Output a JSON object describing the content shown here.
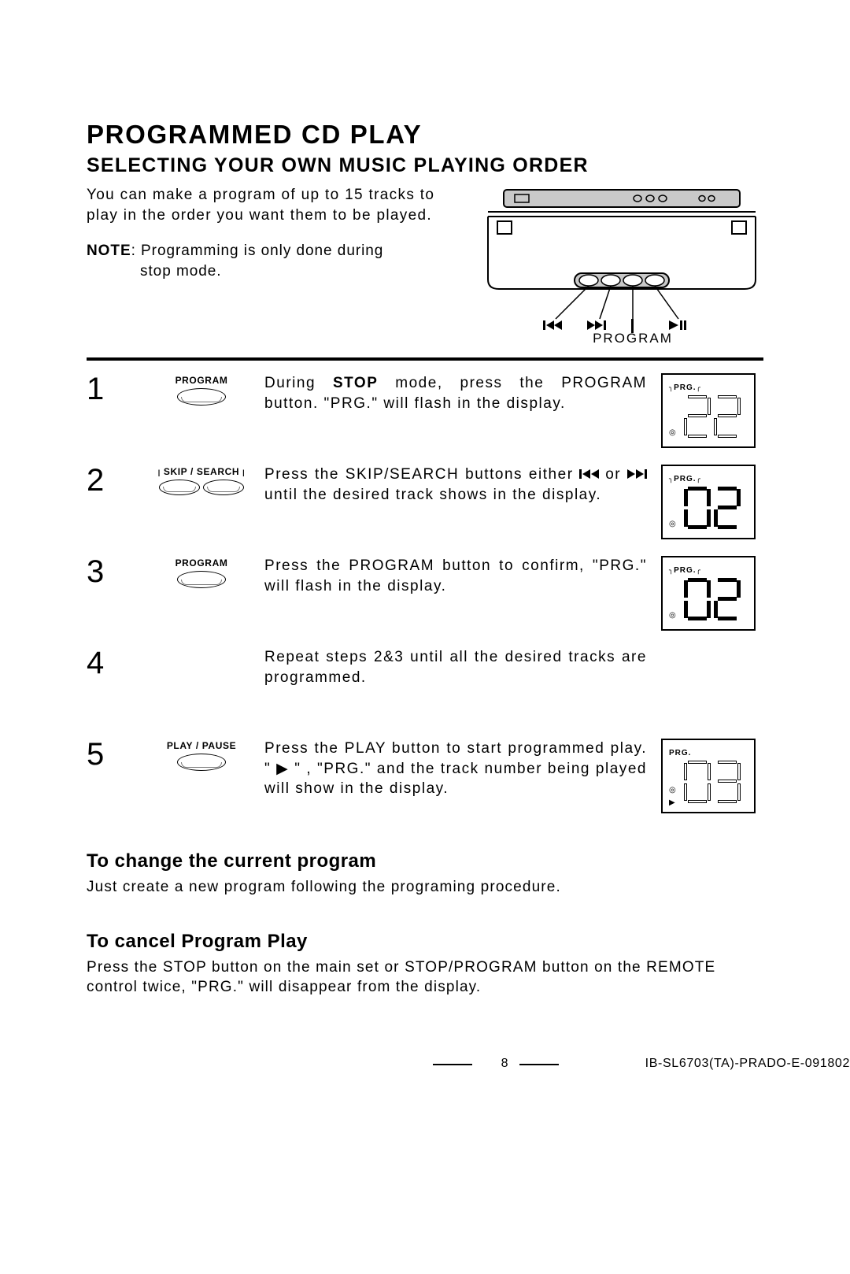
{
  "title": "PROGRAMMED CD PLAY",
  "subtitle": "SELECTING YOUR OWN MUSIC PLAYING ORDER",
  "intro": "You can make a program of up to 15 tracks to play in the order you want them to be played.",
  "note_label": "NOTE",
  "note_line1": ": Programming is only done during",
  "note_line2": "stop mode.",
  "diagram": {
    "label_program": "PROGRAM",
    "icons": [
      "skip-back",
      "skip-fwd",
      "play-pause"
    ]
  },
  "steps": [
    {
      "num": "1",
      "button_label": "PROGRAM",
      "button_style": "single",
      "text_pre": "During ",
      "text_bold": "STOP",
      "text_post": " mode, press the PROGRAM button.  \"PRG.\" will flash in the display.",
      "lcd": {
        "prg_flash": true,
        "disc_icon": true,
        "play_icon": false,
        "digits": "22",
        "open": true
      }
    },
    {
      "num": "2",
      "button_label": "SKIP / SEARCH",
      "button_style": "pair",
      "text_pre": "Press the SKIP/SEARCH buttons either ",
      "text_icons": true,
      "text_post": " until the desired track shows in the display.",
      "lcd": {
        "prg_flash": true,
        "disc_icon": true,
        "play_icon": false,
        "digits": "02",
        "open": false
      }
    },
    {
      "num": "3",
      "button_label": "PROGRAM",
      "button_style": "single",
      "text_pre": "Press the PROGRAM button to confirm, \"PRG.\" will flash in the display.",
      "text_post": "",
      "lcd": {
        "prg_flash": true,
        "disc_icon": true,
        "play_icon": false,
        "digits": "02",
        "open": false
      }
    },
    {
      "num": "4",
      "button_label": "",
      "button_style": "none",
      "text_pre": "Repeat steps 2&3 until all the desired tracks are programmed.",
      "text_post": "",
      "lcd": null
    },
    {
      "num": "5",
      "button_label": "PLAY / PAUSE",
      "button_style": "single",
      "text_pre": "Press the PLAY button to start programmed play. \" ▶ \" , \"PRG.\" and the track number being played will show in the display.",
      "text_post": "",
      "lcd": {
        "prg_flash": false,
        "disc_icon": true,
        "play_icon": true,
        "digits": "03",
        "open": true
      }
    }
  ],
  "sub1_title": "To change the current program",
  "sub1_text": "Just create a new program following the programing procedure.",
  "sub2_title": "To cancel Program Play",
  "sub2_text": "Press the STOP button on the main set or STOP/PROGRAM button on the REMOTE control twice, \"PRG.\" will disappear from the display.",
  "page_number": "8",
  "doc_id": "IB-SL6703(TA)-PRADO-E-091802"
}
